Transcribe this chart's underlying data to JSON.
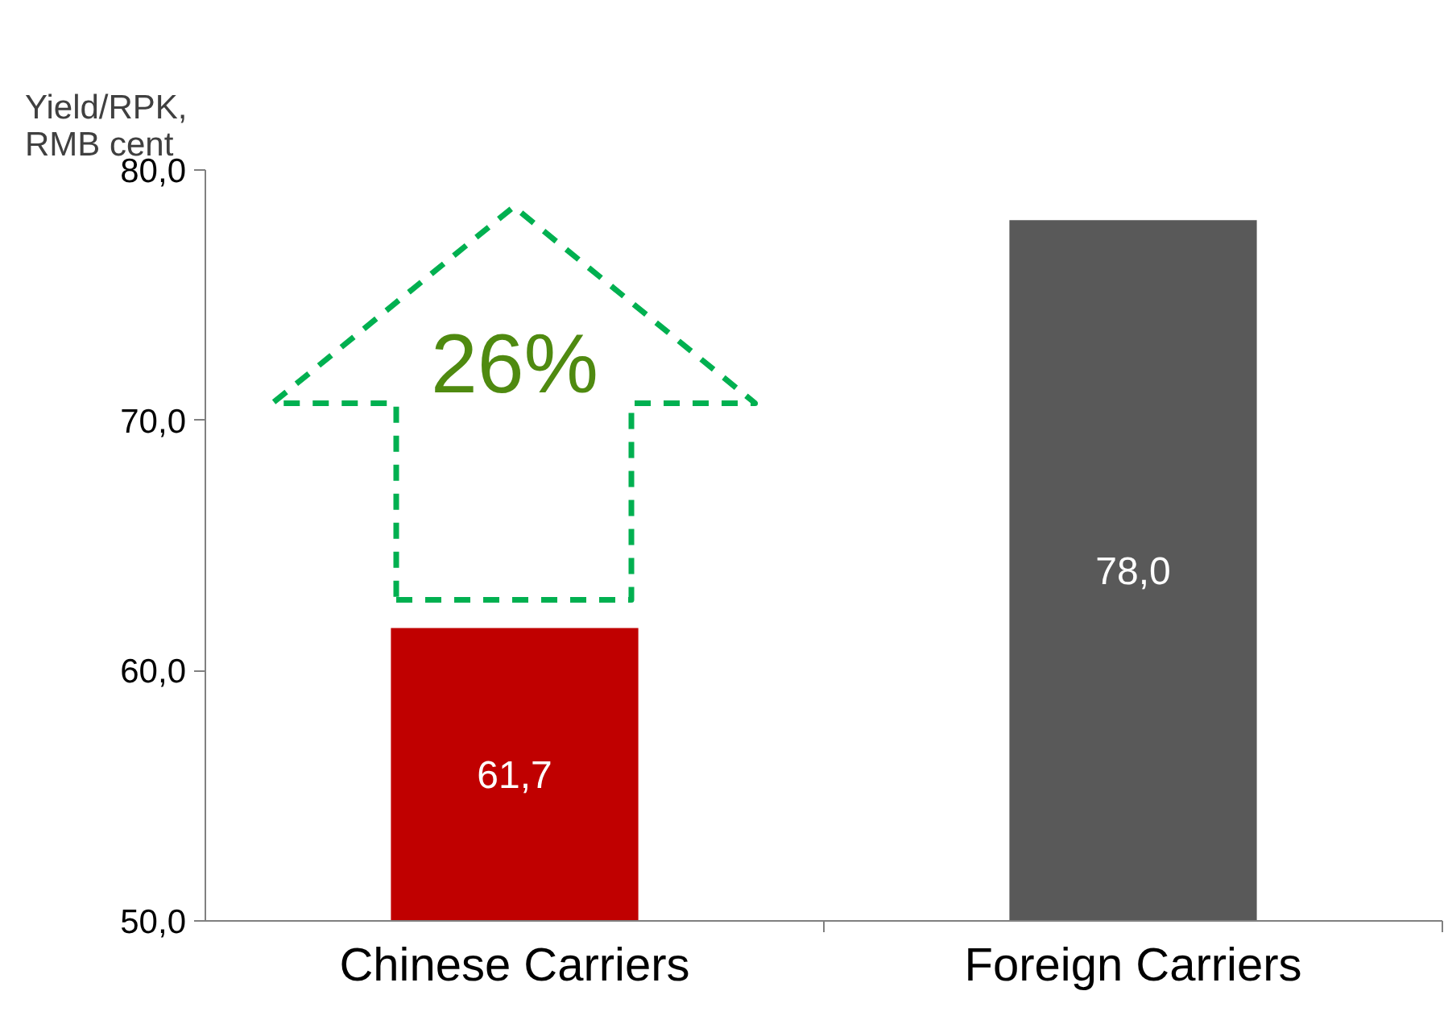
{
  "chart_data": {
    "type": "bar",
    "ylabel": "Yield/RPK,\nRMB cent",
    "categories": [
      "Chinese Carriers",
      "Foreign Carriers"
    ],
    "values": [
      61.7,
      78.0
    ],
    "colors": [
      "#c00000",
      "#595959"
    ],
    "value_labels": [
      "61,7",
      "78,0"
    ],
    "ylim": [
      50,
      80
    ],
    "yticks": [
      {
        "value": 50,
        "label": "50,0"
      },
      {
        "value": 60,
        "label": "60,0"
      },
      {
        "value": 70,
        "label": "70,0"
      },
      {
        "value": 80,
        "label": "80,0"
      }
    ],
    "annotations": [
      "26%"
    ],
    "grid": false
  }
}
